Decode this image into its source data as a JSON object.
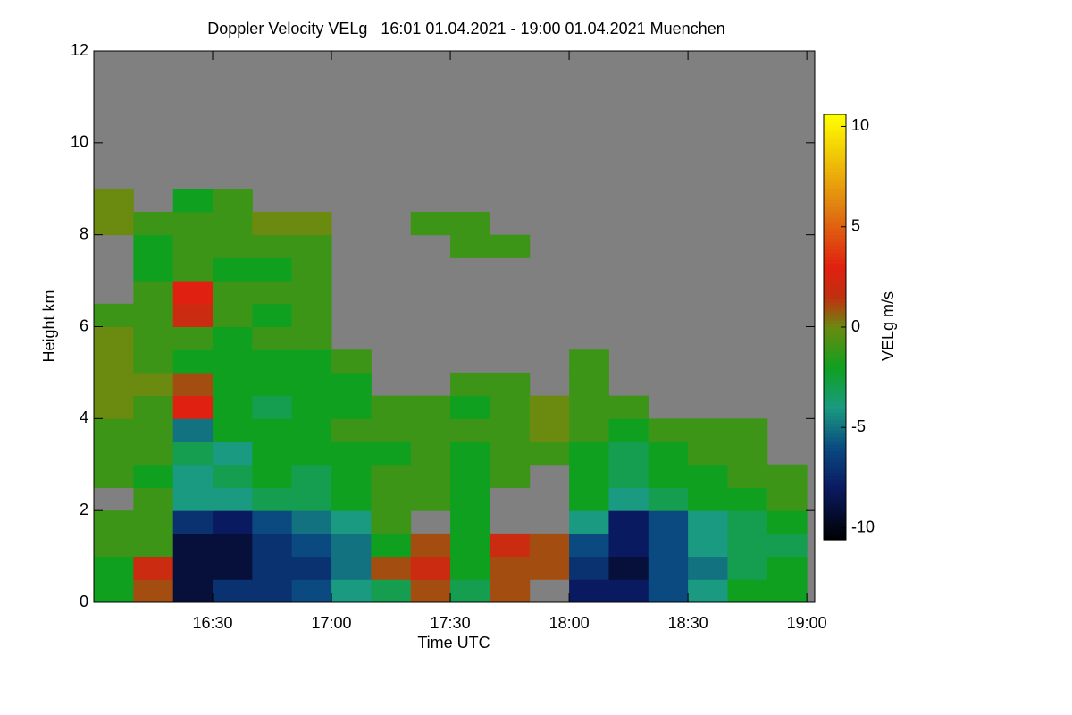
{
  "chart_data": {
    "type": "heatmap",
    "title": "Doppler Velocity VELg   16:01 01.04.2021 - 19:00 01.04.2021 Muenchen",
    "x_label": "Time UTC",
    "y_label": "Height km",
    "colorbar_label": "VELg m/s",
    "x": [
      "16:00",
      "16:10",
      "16:20",
      "16:30",
      "16:40",
      "16:50",
      "17:00",
      "17:10",
      "17:20",
      "17:30",
      "17:40",
      "17:50",
      "18:00",
      "18:10",
      "18:20",
      "18:30",
      "18:40",
      "18:50"
    ],
    "x_step_minutes": 10,
    "y": [
      0,
      0.5,
      1,
      1.5,
      2,
      2.5,
      3,
      3.5,
      4,
      4.5,
      5,
      5.5,
      6,
      6.5,
      7,
      7.5,
      8,
      8.5
    ],
    "y_step": 0.5,
    "z": [
      [
        -2,
        -2,
        -1,
        -1,
        null,
        -1,
        -1,
        -1,
        0,
        0,
        0,
        0,
        -1,
        null,
        null,
        null,
        0,
        0
      ],
      [
        1,
        2,
        -1,
        -1,
        -1,
        -2,
        -1,
        -1,
        -1,
        0,
        -1,
        -1,
        -1,
        -1,
        -2,
        -2,
        -1,
        null
      ],
      [
        -9,
        -9,
        -9,
        -7,
        -4,
        -4,
        -3,
        -5,
        3,
        1,
        -2,
        -1,
        2,
        3,
        -1,
        -1,
        -1,
        -2
      ],
      [
        -7,
        -9,
        -9,
        -8,
        -4,
        -3,
        -4,
        -2,
        -2,
        -2,
        -2,
        -2,
        -1,
        -1,
        -2,
        -1,
        -1,
        -1
      ],
      [
        -7,
        -7,
        -7,
        -6,
        -3,
        -2,
        -2,
        -2,
        -3,
        -2,
        -2,
        -1,
        -2,
        -1,
        -2,
        -1,
        0,
        null
      ],
      [
        -6,
        -7,
        -6,
        -5,
        -3,
        -3,
        -2,
        -2,
        -2,
        -2,
        -2,
        -1,
        -1,
        -1,
        -1,
        -1,
        0,
        null
      ],
      [
        -4,
        -5,
        -5,
        -4,
        -2,
        -2,
        -2,
        -1,
        -2,
        -2,
        -1,
        null,
        null,
        null,
        null,
        null,
        null,
        null
      ],
      [
        -3,
        1,
        -2,
        -1,
        -1,
        -1,
        -2,
        -1,
        -1,
        null,
        null,
        null,
        null,
        null,
        null,
        null,
        null,
        null
      ],
      [
        1,
        2,
        1,
        null,
        -1,
        -1,
        -1,
        -1,
        -1,
        null,
        null,
        null,
        null,
        null,
        null,
        null,
        -1,
        null
      ],
      [
        -3,
        -2,
        -2,
        -2,
        -2,
        -2,
        -2,
        -1,
        -2,
        -1,
        null,
        null,
        null,
        null,
        null,
        -1,
        -1,
        null
      ],
      [
        1,
        1,
        2,
        null,
        null,
        -1,
        -1,
        -1,
        -1,
        -1,
        null,
        null,
        null,
        null,
        null,
        -1,
        null,
        null
      ],
      [
        null,
        1,
        1,
        null,
        null,
        null,
        -1,
        0,
        0,
        null,
        null,
        null,
        null,
        null,
        null,
        null,
        null,
        null
      ],
      [
        -8,
        -7,
        -6,
        -4,
        -2,
        -2,
        -2,
        -1,
        -1,
        -1,
        -1,
        null,
        null,
        null,
        null,
        null,
        null,
        null
      ],
      [
        -8,
        -9,
        -8,
        -8,
        -4,
        -3,
        -3,
        -2,
        -1,
        null,
        null,
        null,
        null,
        null,
        null,
        null,
        null,
        null
      ],
      [
        -6,
        -6,
        -6,
        -6,
        -3,
        -2,
        -2,
        -1,
        null,
        null,
        null,
        null,
        null,
        null,
        null,
        null,
        null,
        null
      ],
      [
        -4,
        -5,
        -4,
        -4,
        -2,
        -2,
        -1,
        -1,
        null,
        null,
        null,
        null,
        null,
        null,
        null,
        null,
        null,
        null
      ],
      [
        -2,
        -3,
        -3,
        -3,
        -2,
        -1,
        -1,
        -1,
        null,
        null,
        null,
        null,
        null,
        null,
        null,
        null,
        null,
        null
      ],
      [
        -2,
        -2,
        -3,
        -2,
        -1,
        -1,
        null,
        null,
        null,
        null,
        null,
        null,
        null,
        null,
        null,
        null,
        null,
        null
      ]
    ],
    "xlim": [
      "16:00",
      "19:02"
    ],
    "xticks": [
      "16:30",
      "17:00",
      "17:30",
      "18:00",
      "18:30",
      "19:00"
    ],
    "ylim": [
      0,
      12
    ],
    "yticks": [
      0,
      2,
      4,
      6,
      8,
      10,
      12
    ],
    "zlim": [
      -10.6,
      10.6
    ],
    "zticks": [
      -10,
      -5,
      0,
      5,
      10
    ],
    "background_color": "#808080",
    "colorscale": [
      [
        -10.6,
        "#000000"
      ],
      [
        -8,
        "#0a1a60"
      ],
      [
        -6,
        "#0a4a80"
      ],
      [
        -4,
        "#1a9a80"
      ],
      [
        -2,
        "#10a020"
      ],
      [
        0,
        "#6a8a10"
      ],
      [
        1.5,
        "#c03010"
      ],
      [
        3,
        "#e02010"
      ],
      [
        6,
        "#e08010"
      ],
      [
        10.6,
        "#ffff00"
      ]
    ]
  }
}
